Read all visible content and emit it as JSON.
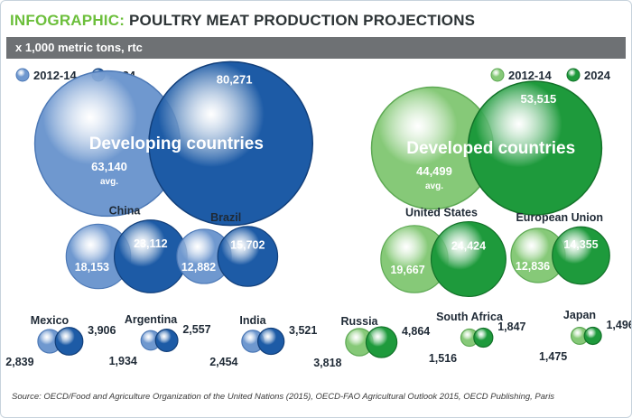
{
  "header": {
    "label": "INFOGRAPHIC:",
    "title": "POULTRY MEAT PRODUCTION PROJECTIONS",
    "subtitle": "x 1,000 metric tons, rtc"
  },
  "source": "Source: OECD/Food and Agriculture Organization of the United Nations (2015), OECD-FAO Agricultural Outlook 2015, OECD Publishing, Paris",
  "colors": {
    "developing_2012_14": "#6f98cf",
    "developing_2024": "#1d5ba6",
    "developed_2012_14": "#86c978",
    "developed_2024": "#1e9a3c",
    "title_accent": "#6cbf3b"
  },
  "chart_data": {
    "type": "bubble",
    "unit": "x 1,000 metric tons, rtc",
    "series": [
      {
        "name": "2012-14"
      },
      {
        "name": "2024"
      }
    ],
    "groups": [
      {
        "name": "Developing countries",
        "legend": [
          "2012-14",
          "2024"
        ],
        "aggregate": {
          "name": "Developing countries",
          "values": [
            63140,
            80271
          ],
          "labels": [
            "63,140",
            "80,271"
          ],
          "note": "avg."
        },
        "countries": [
          {
            "name": "China",
            "values": [
              18153,
              23112
            ],
            "labels": [
              "18,153",
              "23,112"
            ]
          },
          {
            "name": "Brazil",
            "values": [
              12882,
              15702
            ],
            "labels": [
              "12,882",
              "15,702"
            ]
          },
          {
            "name": "Mexico",
            "values": [
              2839,
              3906
            ],
            "labels": [
              "2,839",
              "3,906"
            ]
          },
          {
            "name": "Argentina",
            "values": [
              1934,
              2557
            ],
            "labels": [
              "1,934",
              "2,557"
            ]
          },
          {
            "name": "India",
            "values": [
              2454,
              3521
            ],
            "labels": [
              "2,454",
              "3,521"
            ]
          }
        ]
      },
      {
        "name": "Developed countries",
        "legend": [
          "2012-14",
          "2024"
        ],
        "aggregate": {
          "name": "Developed countries",
          "values": [
            44499,
            53515
          ],
          "labels": [
            "44,499",
            "53,515"
          ],
          "note": "avg."
        },
        "countries": [
          {
            "name": "United States",
            "values": [
              19667,
              24424
            ],
            "labels": [
              "19,667",
              "24,424"
            ]
          },
          {
            "name": "European Union",
            "values": [
              12836,
              14355
            ],
            "labels": [
              "12,836",
              "14,355"
            ]
          },
          {
            "name": "Russia",
            "values": [
              3818,
              4864
            ],
            "labels": [
              "3,818",
              "4,864"
            ]
          },
          {
            "name": "South Africa",
            "values": [
              1516,
              1847
            ],
            "labels": [
              "1,516",
              "1,847"
            ]
          },
          {
            "name": "Japan",
            "values": [
              1475,
              1496
            ],
            "labels": [
              "1,475",
              "1,496"
            ]
          }
        ]
      }
    ]
  }
}
